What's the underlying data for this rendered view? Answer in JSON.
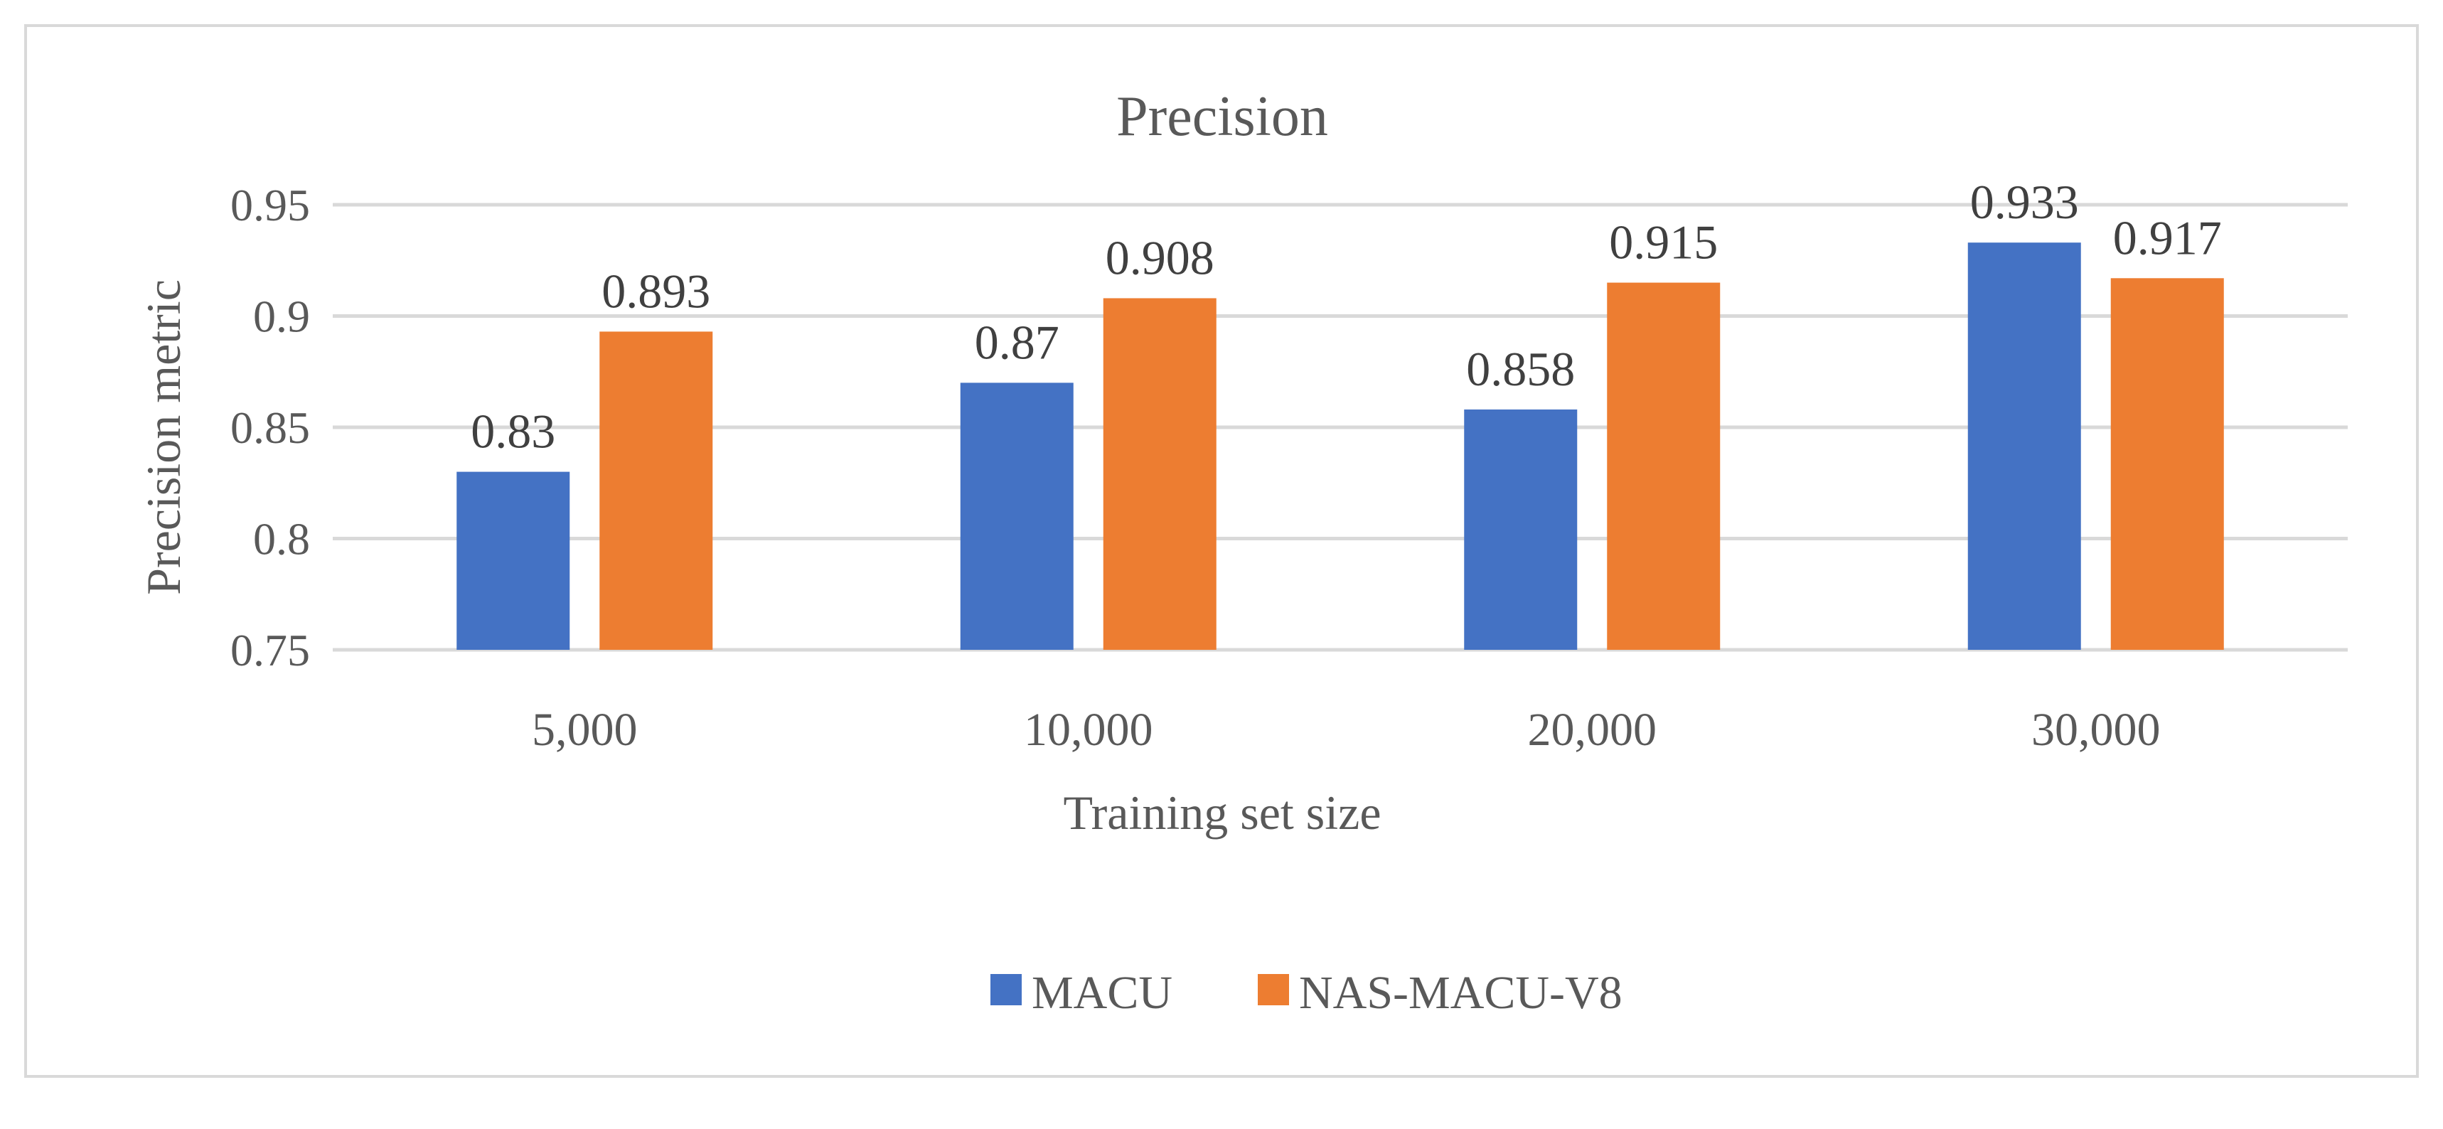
{
  "chart_data": {
    "type": "bar",
    "title": "Precision",
    "xlabel": "Training set size",
    "ylabel": "Precision metric",
    "categories": [
      "5,000",
      "10,000",
      "20,000",
      "30,000"
    ],
    "series": [
      {
        "name": "MACU",
        "color": "#4472c4",
        "values": [
          0.83,
          0.87,
          0.858,
          0.933
        ],
        "labels": [
          "0.83",
          "0.87",
          "0.858",
          "0.933"
        ]
      },
      {
        "name": "NAS-MACU-V8",
        "color": "#ed7d31",
        "values": [
          0.893,
          0.908,
          0.915,
          0.917
        ],
        "labels": [
          "0.893",
          "0.908",
          "0.915",
          "0.917"
        ]
      }
    ],
    "ylim": [
      0.75,
      0.95
    ],
    "yticks": [
      0.75,
      0.8,
      0.85,
      0.9,
      0.95
    ],
    "ytick_labels": [
      "0.75",
      "0.8",
      "0.85",
      "0.9",
      "0.95"
    ],
    "grid": true,
    "legend_position": "bottom"
  }
}
